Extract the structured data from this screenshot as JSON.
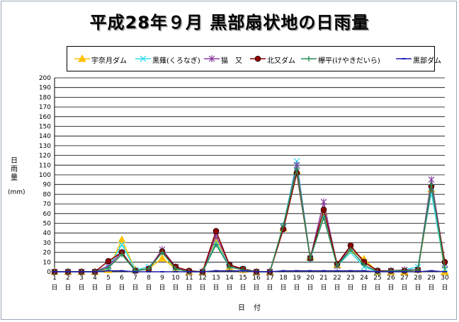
{
  "chart_data": {
    "type": "line",
    "title": "平成28年９月  黒部扇状地の日雨量",
    "ylabel": "日雨量",
    "yunit": "(mm)",
    "xlabel": "日付",
    "ylim": [
      0,
      200
    ],
    "yticks": [
      0,
      10,
      20,
      30,
      40,
      50,
      60,
      70,
      80,
      90,
      100,
      110,
      120,
      130,
      140,
      150,
      160,
      170,
      180,
      190,
      200
    ],
    "grid": true,
    "legend_position": "top",
    "categories": [
      "1",
      "2",
      "3",
      "4",
      "5",
      "6",
      "7",
      "8",
      "9",
      "10",
      "11",
      "12",
      "13",
      "14",
      "15",
      "16",
      "17",
      "18",
      "19",
      "20",
      "21",
      "22",
      "23",
      "24",
      "25",
      "26",
      "27",
      "28",
      "29",
      "30"
    ],
    "category_suffix": "日",
    "series": [
      {
        "name": "宇奈月ダム",
        "color": "#ffc000",
        "marker": "triangle",
        "values": [
          0,
          0,
          0,
          0,
          2,
          33,
          2,
          3,
          14,
          3,
          0,
          0,
          33,
          5,
          2,
          0,
          0,
          45,
          104,
          15,
          62,
          7,
          22,
          13,
          0,
          0,
          0,
          2,
          85,
          0
        ]
      },
      {
        "name": "黒薙(くろなぎ)",
        "color": "#33ddee",
        "marker": "x",
        "values": [
          0,
          0,
          0,
          0,
          4,
          28,
          2,
          5,
          20,
          4,
          0,
          0,
          30,
          6,
          3,
          0,
          0,
          47,
          114,
          13,
          58,
          6,
          20,
          5,
          0,
          1,
          2,
          5,
          82,
          3
        ]
      },
      {
        "name": "猫　又",
        "color": "#8a3fa0",
        "marker": "star",
        "values": [
          0,
          0,
          0,
          0,
          6,
          20,
          1,
          3,
          23,
          5,
          0,
          0,
          37,
          7,
          2,
          0,
          0,
          46,
          110,
          14,
          72,
          6,
          26,
          10,
          1,
          1,
          2,
          2,
          95,
          8
        ]
      },
      {
        "name": "北又ダム",
        "color": "#8b0000",
        "marker": "circle",
        "values": [
          0,
          0,
          0,
          0,
          11,
          20,
          1,
          3,
          21,
          5,
          1,
          0,
          42,
          7,
          3,
          0,
          0,
          44,
          102,
          14,
          64,
          8,
          27,
          10,
          1,
          1,
          1,
          2,
          88,
          10
        ]
      },
      {
        "name": "欅平(けやきだいら)",
        "color": "#2e8b57",
        "marker": "plus",
        "values": [
          0,
          0,
          0,
          0,
          4,
          18,
          1,
          3,
          20,
          3,
          0,
          0,
          28,
          5,
          2,
          0,
          0,
          48,
          106,
          14,
          56,
          6,
          23,
          7,
          0,
          1,
          1,
          2,
          90,
          4
        ]
      },
      {
        "name": "黒部ダム",
        "color": "#1f1fb0",
        "marker": "dash",
        "values": [
          0,
          0,
          0,
          0,
          1,
          1,
          0,
          0,
          0,
          0,
          0,
          0,
          1,
          1,
          1,
          0,
          0,
          1,
          1,
          1,
          1,
          1,
          1,
          1,
          0,
          0,
          0,
          0,
          1,
          0
        ]
      }
    ]
  }
}
